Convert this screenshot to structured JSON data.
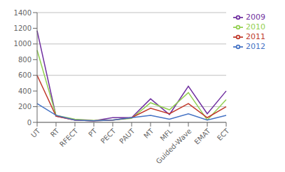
{
  "chart_data": {
    "type": "line",
    "categories": [
      "UT",
      "RT",
      "RFECT",
      "PT",
      "PECT",
      "PAUT",
      "MT",
      "MFL",
      "Guided-Wave",
      "EMAT",
      "ECT"
    ],
    "series": [
      {
        "name": "2009",
        "color": "#7030a0",
        "values": [
          1170,
          80,
          30,
          20,
          60,
          60,
          300,
          100,
          460,
          110,
          400
        ]
      },
      {
        "name": "2010",
        "color": "#92d050",
        "values": [
          920,
          90,
          40,
          25,
          30,
          50,
          250,
          160,
          380,
          30,
          290
        ]
      },
      {
        "name": "2011",
        "color": "#c0392b",
        "values": [
          600,
          80,
          30,
          20,
          30,
          60,
          180,
          110,
          240,
          60,
          200
        ]
      },
      {
        "name": "2012",
        "color": "#4472c4",
        "values": [
          240,
          90,
          30,
          20,
          30,
          60,
          90,
          40,
          110,
          30,
          90
        ]
      }
    ],
    "ylim": [
      0,
      1400
    ],
    "yticks": [
      0,
      200,
      400,
      600,
      800,
      1000,
      1200,
      1400
    ],
    "grid": true,
    "legend": "upper right"
  }
}
